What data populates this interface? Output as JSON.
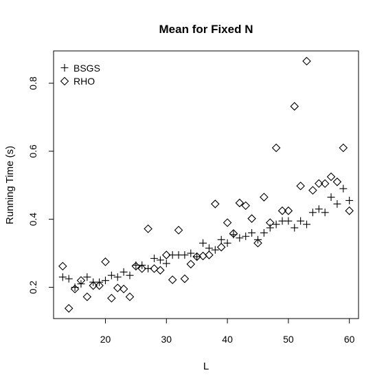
{
  "chart_data": {
    "type": "scatter",
    "title": "Mean for Fixed N",
    "xlabel": "L",
    "ylabel": "Running Time (s)",
    "xlim": [
      11.5,
      61.5
    ],
    "ylim": [
      0.108,
      0.895
    ],
    "xticks": [
      20,
      30,
      40,
      50,
      60
    ],
    "yticks": [
      0.2,
      0.4,
      0.6,
      0.8
    ],
    "xtick_labels": [
      "20",
      "30",
      "40",
      "50",
      "60"
    ],
    "ytick_labels": [
      "0.2",
      "0.4",
      "0.6",
      "0.8"
    ],
    "legend_position": "top-left",
    "series": [
      {
        "name": "BSGS",
        "marker": "plus",
        "x": [
          13,
          14,
          15,
          16,
          17,
          18,
          19,
          20,
          21,
          22,
          23,
          24,
          25,
          26,
          27,
          28,
          29,
          30,
          31,
          32,
          33,
          34,
          35,
          36,
          37,
          38,
          39,
          40,
          41,
          42,
          43,
          44,
          45,
          46,
          47,
          48,
          49,
          50,
          51,
          52,
          53,
          54,
          55,
          56,
          57,
          58,
          59,
          60
        ],
        "y": [
          0.23,
          0.225,
          0.2,
          0.21,
          0.23,
          0.215,
          0.215,
          0.22,
          0.235,
          0.23,
          0.245,
          0.235,
          0.265,
          0.265,
          0.255,
          0.285,
          0.28,
          0.27,
          0.295,
          0.295,
          0.295,
          0.3,
          0.29,
          0.33,
          0.315,
          0.31,
          0.34,
          0.33,
          0.355,
          0.345,
          0.35,
          0.36,
          0.34,
          0.36,
          0.375,
          0.385,
          0.395,
          0.395,
          0.375,
          0.395,
          0.385,
          0.42,
          0.43,
          0.42,
          0.465,
          0.445,
          0.49,
          0.455
        ]
      },
      {
        "name": "RHO",
        "marker": "diamond",
        "x": [
          13,
          14,
          15,
          16,
          17,
          18,
          19,
          20,
          21,
          22,
          23,
          24,
          25,
          26,
          27,
          28,
          29,
          30,
          31,
          32,
          33,
          34,
          35,
          36,
          37,
          38,
          39,
          40,
          41,
          42,
          43,
          44,
          45,
          46,
          47,
          48,
          49,
          50,
          51,
          52,
          53,
          54,
          55,
          56,
          57,
          58,
          59,
          60
        ],
        "y": [
          0.262,
          0.138,
          0.195,
          0.22,
          0.172,
          0.205,
          0.205,
          0.275,
          0.168,
          0.198,
          0.195,
          0.172,
          0.262,
          0.255,
          0.372,
          0.255,
          0.25,
          0.295,
          0.222,
          0.368,
          0.225,
          0.268,
          0.29,
          0.292,
          0.295,
          0.445,
          0.318,
          0.39,
          0.358,
          0.448,
          0.44,
          0.402,
          0.33,
          0.465,
          0.39,
          0.61,
          0.425,
          0.425,
          0.732,
          0.498,
          0.865,
          0.485,
          0.505,
          0.505,
          0.525,
          0.51,
          0.61,
          0.425
        ]
      }
    ]
  }
}
